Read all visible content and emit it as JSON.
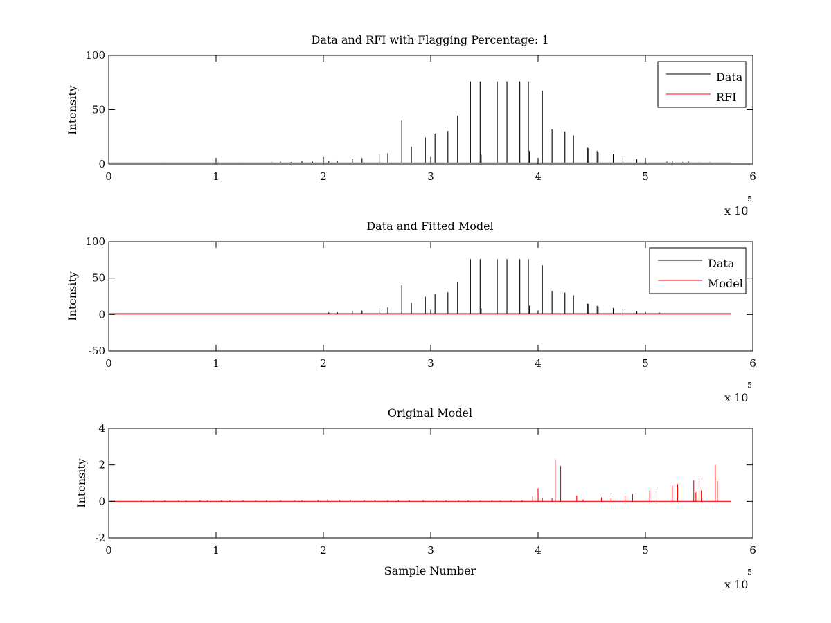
{
  "figure": {
    "background": "#ffffff",
    "axis_color": "#000000",
    "data_color": "#000000",
    "rfi_color": "#ff0000"
  },
  "chart_data": [
    {
      "type": "line",
      "title": "Data and RFI with Flagging Percentage: 1",
      "xlabel": "",
      "ylabel": "Intensity",
      "xlim": [
        0,
        6
      ],
      "ylim": [
        0,
        100
      ],
      "xticks": [
        0,
        1,
        2,
        3,
        4,
        5,
        6
      ],
      "yticks": [
        0,
        50,
        100
      ],
      "x_multiplier": {
        "base": "x 10",
        "exp": "5"
      },
      "legend_position": "top-right",
      "grid": false,
      "series": [
        {
          "name": "Data",
          "color": "#000000",
          "style": "spikes",
          "baseline": 1,
          "spikes": [
            [
              0.1,
              1.2
            ],
            [
              0.2,
              1.3
            ],
            [
              0.3,
              1.0
            ],
            [
              0.42,
              1.2
            ],
            [
              0.52,
              1.4
            ],
            [
              0.62,
              1.1
            ],
            [
              0.82,
              1.2
            ],
            [
              0.92,
              1.3
            ],
            [
              1.02,
              1.5
            ],
            [
              1.12,
              1.2
            ],
            [
              1.22,
              1.4
            ],
            [
              1.32,
              1.3
            ],
            [
              1.42,
              1.2
            ],
            [
              1.52,
              1.5
            ],
            [
              1.6,
              2.2
            ],
            [
              1.7,
              1.8
            ],
            [
              1.8,
              2.5
            ],
            [
              1.9,
              2.1
            ],
            [
              2.0,
              6.5
            ],
            [
              2.05,
              3.0
            ],
            [
              2.13,
              3.2
            ],
            [
              2.27,
              5.0
            ],
            [
              2.36,
              5.5
            ],
            [
              2.52,
              8.5
            ],
            [
              2.6,
              10.0
            ],
            [
              2.73,
              40.0
            ],
            [
              2.82,
              16.0
            ],
            [
              2.95,
              24.5
            ],
            [
              3.0,
              6.5
            ],
            [
              3.04,
              28.0
            ],
            [
              3.16,
              30.5
            ],
            [
              3.25,
              44.5
            ],
            [
              3.37,
              76.0
            ],
            [
              3.46,
              76.0
            ],
            [
              3.47,
              8.5
            ],
            [
              3.62,
              76.0
            ],
            [
              3.71,
              76.0
            ],
            [
              3.83,
              76.0
            ],
            [
              3.91,
              76.0
            ],
            [
              3.92,
              12.0
            ],
            [
              4.0,
              5.5
            ],
            [
              4.04,
              67.5
            ],
            [
              4.13,
              32.0
            ],
            [
              4.25,
              30.0
            ],
            [
              4.33,
              26.5
            ],
            [
              4.46,
              15.0
            ],
            [
              4.47,
              14.5
            ],
            [
              4.55,
              12.0
            ],
            [
              4.56,
              11.0
            ],
            [
              4.7,
              9.0
            ],
            [
              4.79,
              7.5
            ],
            [
              4.92,
              4.5
            ],
            [
              5.0,
              5.5
            ],
            [
              5.2,
              2.2
            ],
            [
              5.25,
              2.5
            ],
            [
              5.35,
              2.0
            ],
            [
              5.4,
              2.3
            ],
            [
              5.5,
              1.5
            ],
            [
              5.6,
              1.6
            ],
            [
              5.7,
              1.3
            ]
          ]
        },
        {
          "name": "RFI",
          "color": "#ff0000",
          "style": "none"
        }
      ]
    },
    {
      "type": "line",
      "title": "Data and Fitted Model",
      "xlabel": "",
      "ylabel": "Intensity",
      "xlim": [
        0,
        6
      ],
      "ylim": [
        -50,
        100
      ],
      "xticks": [
        0,
        1,
        2,
        3,
        4,
        5,
        6
      ],
      "yticks": [
        -50,
        0,
        50,
        100
      ],
      "x_multiplier": {
        "base": "x 10",
        "exp": "5"
      },
      "legend_position": "top-right",
      "grid": false,
      "series": [
        {
          "name": "Data",
          "color": "#000000",
          "style": "spikes",
          "baseline": 1,
          "spikes": [
            [
              2.05,
              3.0
            ],
            [
              2.13,
              3.2
            ],
            [
              2.27,
              5.0
            ],
            [
              2.36,
              5.5
            ],
            [
              2.52,
              8.5
            ],
            [
              2.6,
              10.0
            ],
            [
              2.73,
              40.0
            ],
            [
              2.82,
              16.0
            ],
            [
              2.95,
              24.5
            ],
            [
              3.0,
              6.5
            ],
            [
              3.04,
              28.0
            ],
            [
              3.16,
              30.5
            ],
            [
              3.25,
              44.5
            ],
            [
              3.37,
              76.0
            ],
            [
              3.46,
              76.0
            ],
            [
              3.47,
              8.5
            ],
            [
              3.62,
              76.0
            ],
            [
              3.71,
              76.0
            ],
            [
              3.83,
              76.0
            ],
            [
              3.91,
              76.0
            ],
            [
              3.92,
              12.0
            ],
            [
              4.0,
              5.5
            ],
            [
              4.04,
              67.5
            ],
            [
              4.13,
              32.0
            ],
            [
              4.25,
              30.0
            ],
            [
              4.33,
              26.5
            ],
            [
              4.46,
              15.0
            ],
            [
              4.47,
              14.5
            ],
            [
              4.55,
              12.0
            ],
            [
              4.56,
              11.0
            ],
            [
              4.7,
              9.0
            ],
            [
              4.79,
              7.5
            ],
            [
              4.92,
              4.5
            ],
            [
              5.0,
              3.5
            ],
            [
              5.13,
              2.5
            ]
          ]
        },
        {
          "name": "Model",
          "color": "#ff0000",
          "style": "flat",
          "x": [
            0.02,
            5.8
          ],
          "y": [
            0.5,
            0.5
          ]
        }
      ]
    },
    {
      "type": "line",
      "title": "Original Model",
      "xlabel": "Sample Number",
      "ylabel": "Intensity",
      "xlim": [
        0,
        6
      ],
      "ylim": [
        -2,
        4
      ],
      "xticks": [
        0,
        1,
        2,
        3,
        4,
        5,
        6
      ],
      "yticks": [
        -2,
        0,
        2,
        4
      ],
      "x_multiplier": {
        "base": "x 10",
        "exp": "5"
      },
      "grid": false,
      "series": [
        {
          "name": "",
          "color": "#ff0000",
          "style": "spikes",
          "baseline": 0,
          "spikes": [
            [
              0.05,
              0.05
            ],
            [
              0.3,
              0.05
            ],
            [
              0.42,
              0.05
            ],
            [
              0.52,
              0.05
            ],
            [
              0.65,
              0.05
            ],
            [
              0.72,
              0.05
            ],
            [
              0.85,
              0.06
            ],
            [
              0.92,
              0.05
            ],
            [
              1.05,
              0.06
            ],
            [
              1.13,
              0.05
            ],
            [
              1.25,
              0.06
            ],
            [
              1.37,
              0.05
            ],
            [
              1.47,
              0.05
            ],
            [
              1.6,
              0.06
            ],
            [
              1.73,
              0.07
            ],
            [
              1.8,
              0.06
            ],
            [
              1.95,
              0.08
            ],
            [
              2.04,
              0.12
            ],
            [
              2.15,
              0.08
            ],
            [
              2.25,
              0.08
            ],
            [
              2.38,
              0.07
            ],
            [
              2.48,
              0.07
            ],
            [
              2.6,
              0.06
            ],
            [
              2.7,
              0.06
            ],
            [
              2.8,
              0.06
            ],
            [
              2.93,
              0.06
            ],
            [
              3.05,
              0.05
            ],
            [
              3.14,
              0.05
            ],
            [
              3.26,
              0.05
            ],
            [
              3.35,
              0.05
            ],
            [
              3.46,
              0.05
            ],
            [
              3.57,
              0.05
            ],
            [
              3.65,
              0.05
            ],
            [
              3.75,
              0.05
            ],
            [
              3.85,
              0.06
            ],
            [
              3.95,
              0.28
            ],
            [
              4.0,
              0.72
            ],
            [
              4.04,
              0.18
            ],
            [
              4.13,
              0.16
            ],
            [
              4.16,
              2.3
            ],
            [
              4.21,
              1.95
            ],
            [
              4.36,
              0.32
            ],
            [
              4.42,
              0.1
            ],
            [
              4.59,
              0.22
            ],
            [
              4.68,
              0.2
            ],
            [
              4.81,
              0.3
            ],
            [
              4.88,
              0.42
            ],
            [
              5.04,
              0.6
            ],
            [
              5.1,
              0.55
            ],
            [
              5.25,
              0.88
            ],
            [
              5.3,
              0.95
            ],
            [
              5.45,
              1.15
            ],
            [
              5.47,
              0.5
            ],
            [
              5.5,
              1.28
            ],
            [
              5.52,
              0.6
            ],
            [
              5.65,
              2.0
            ],
            [
              5.67,
              1.1
            ]
          ]
        }
      ]
    }
  ]
}
